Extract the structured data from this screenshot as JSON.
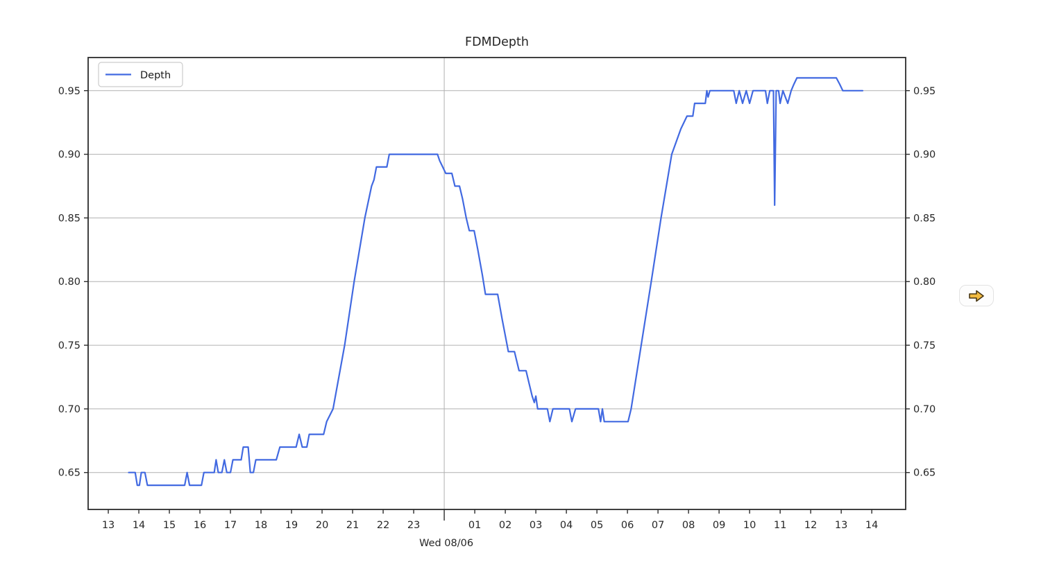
{
  "chart": {
    "title": "FDMDepth",
    "legend": {
      "label": "Depth"
    },
    "x_axis": {
      "date_label": "Wed 08/06"
    },
    "colors": {
      "line": "#4169e1",
      "grid": "#b0b0b0",
      "axis": "#2b2b2b",
      "text": "#262626",
      "legend_border": "#cccccc"
    }
  },
  "controls": {
    "next_button": {
      "icon": "arrow-right",
      "arrow_fill": "#f2bb41",
      "arrow_stroke": "#463512"
    }
  },
  "chart_data": {
    "type": "line",
    "title": "FDMDepth",
    "xlabel": "Wed 08/06",
    "ylabel": "",
    "legend_position": "upper left",
    "grid": true,
    "xlim": [
      12.34,
      39.11
    ],
    "ylim": [
      0.621,
      0.976
    ],
    "x_ticks_hours": [
      13,
      14,
      15,
      16,
      17,
      18,
      19,
      20,
      21,
      22,
      23,
      24,
      25,
      26,
      27,
      28,
      29,
      30,
      31,
      32,
      33,
      34,
      35,
      36,
      37,
      38
    ],
    "x_tick_labels": [
      "13",
      "14",
      "15",
      "16",
      "17",
      "18",
      "19",
      "20",
      "21",
      "22",
      "23",
      "",
      "01",
      "02",
      "03",
      "04",
      "05",
      "06",
      "07",
      "08",
      "09",
      "10",
      "11",
      "12",
      "13",
      "14"
    ],
    "midnight_hour": 24,
    "y_ticks": [
      0.65,
      0.7,
      0.75,
      0.8,
      0.85,
      0.9,
      0.95
    ],
    "y_tick_labels": [
      "0.65",
      "0.70",
      "0.75",
      "0.80",
      "0.85",
      "0.90",
      "0.95"
    ],
    "series": [
      {
        "name": "Depth",
        "points": [
          [
            13.67,
            0.65
          ],
          [
            13.88,
            0.65
          ],
          [
            13.95,
            0.64
          ],
          [
            14.02,
            0.64
          ],
          [
            14.08,
            0.65
          ],
          [
            14.2,
            0.65
          ],
          [
            14.28,
            0.64
          ],
          [
            15.5,
            0.64
          ],
          [
            15.58,
            0.65
          ],
          [
            15.66,
            0.64
          ],
          [
            16.05,
            0.64
          ],
          [
            16.13,
            0.65
          ],
          [
            16.47,
            0.65
          ],
          [
            16.53,
            0.66
          ],
          [
            16.6,
            0.65
          ],
          [
            16.72,
            0.65
          ],
          [
            16.8,
            0.66
          ],
          [
            16.88,
            0.65
          ],
          [
            17.0,
            0.65
          ],
          [
            17.08,
            0.66
          ],
          [
            17.35,
            0.66
          ],
          [
            17.42,
            0.67
          ],
          [
            17.58,
            0.67
          ],
          [
            17.65,
            0.65
          ],
          [
            17.75,
            0.65
          ],
          [
            17.83,
            0.66
          ],
          [
            18.5,
            0.66
          ],
          [
            18.62,
            0.67
          ],
          [
            19.15,
            0.67
          ],
          [
            19.25,
            0.68
          ],
          [
            19.35,
            0.67
          ],
          [
            19.5,
            0.67
          ],
          [
            19.58,
            0.68
          ],
          [
            20.05,
            0.68
          ],
          [
            20.15,
            0.69
          ],
          [
            20.36,
            0.7
          ],
          [
            20.74,
            0.75
          ],
          [
            21.05,
            0.8
          ],
          [
            21.4,
            0.85
          ],
          [
            21.62,
            0.875
          ],
          [
            21.7,
            0.88
          ],
          [
            21.78,
            0.89
          ],
          [
            22.12,
            0.89
          ],
          [
            22.2,
            0.9
          ],
          [
            23.78,
            0.9
          ],
          [
            23.85,
            0.895
          ],
          [
            23.95,
            0.89
          ],
          [
            24.05,
            0.885
          ],
          [
            24.25,
            0.885
          ],
          [
            24.35,
            0.875
          ],
          [
            24.5,
            0.875
          ],
          [
            24.6,
            0.865
          ],
          [
            24.72,
            0.85
          ],
          [
            24.82,
            0.84
          ],
          [
            24.98,
            0.84
          ],
          [
            25.1,
            0.825
          ],
          [
            25.25,
            0.805
          ],
          [
            25.35,
            0.79
          ],
          [
            25.75,
            0.79
          ],
          [
            25.9,
            0.77
          ],
          [
            26.02,
            0.755
          ],
          [
            26.1,
            0.745
          ],
          [
            26.3,
            0.745
          ],
          [
            26.45,
            0.73
          ],
          [
            26.68,
            0.73
          ],
          [
            26.78,
            0.72
          ],
          [
            26.88,
            0.71
          ],
          [
            26.95,
            0.705
          ],
          [
            27.0,
            0.71
          ],
          [
            27.06,
            0.7
          ],
          [
            27.38,
            0.7
          ],
          [
            27.46,
            0.69
          ],
          [
            27.56,
            0.7
          ],
          [
            28.1,
            0.7
          ],
          [
            28.18,
            0.69
          ],
          [
            28.3,
            0.7
          ],
          [
            29.05,
            0.7
          ],
          [
            29.12,
            0.69
          ],
          [
            29.18,
            0.7
          ],
          [
            29.24,
            0.69
          ],
          [
            29.35,
            0.69
          ],
          [
            30.02,
            0.69
          ],
          [
            30.12,
            0.7
          ],
          [
            30.45,
            0.75
          ],
          [
            30.78,
            0.8
          ],
          [
            31.1,
            0.85
          ],
          [
            31.45,
            0.9
          ],
          [
            31.75,
            0.92
          ],
          [
            31.95,
            0.93
          ],
          [
            32.14,
            0.93
          ],
          [
            32.2,
            0.94
          ],
          [
            32.55,
            0.94
          ],
          [
            32.6,
            0.95
          ],
          [
            32.64,
            0.945
          ],
          [
            32.7,
            0.95
          ],
          [
            33.48,
            0.95
          ],
          [
            33.56,
            0.94
          ],
          [
            33.66,
            0.95
          ],
          [
            33.77,
            0.94
          ],
          [
            33.89,
            0.95
          ],
          [
            34.0,
            0.94
          ],
          [
            34.11,
            0.95
          ],
          [
            34.52,
            0.95
          ],
          [
            34.58,
            0.94
          ],
          [
            34.66,
            0.95
          ],
          [
            34.78,
            0.95
          ],
          [
            34.82,
            0.86
          ],
          [
            34.87,
            0.95
          ],
          [
            34.95,
            0.95
          ],
          [
            35.0,
            0.94
          ],
          [
            35.09,
            0.95
          ],
          [
            35.25,
            0.94
          ],
          [
            35.36,
            0.95
          ],
          [
            35.45,
            0.955
          ],
          [
            35.55,
            0.96
          ],
          [
            36.84,
            0.96
          ],
          [
            36.95,
            0.955
          ],
          [
            37.05,
            0.95
          ],
          [
            37.7,
            0.95
          ]
        ]
      }
    ]
  }
}
